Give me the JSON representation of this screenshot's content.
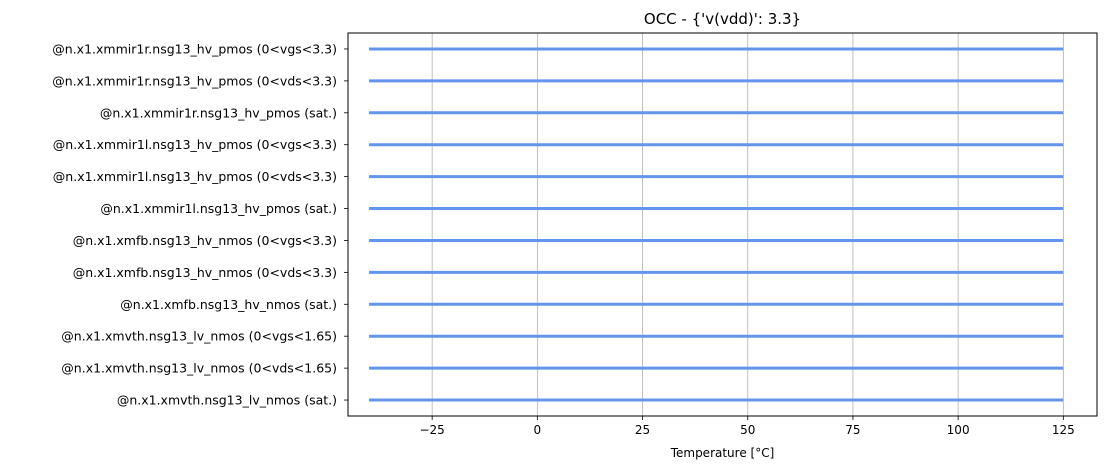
{
  "chart_data": {
    "type": "bar",
    "orientation": "horizontal",
    "title": "OCC - {'v(vdd)': 3.3}",
    "xlabel": "Temperature [°C]",
    "ylabel": "",
    "xlim": [
      -45,
      133
    ],
    "xticks": [
      -25,
      0,
      25,
      50,
      75,
      100,
      125
    ],
    "xtick_labels": [
      "−25",
      "0",
      "25",
      "50",
      "75",
      "100",
      "125"
    ],
    "grid": "x",
    "bar_color": "#6495ed",
    "categories": [
      "@n.x1.xmmir1r.nsg13_hv_pmos (0<vgs<3.3)",
      "@n.x1.xmmir1r.nsg13_hv_pmos (0<vds<3.3)",
      "@n.x1.xmmir1r.nsg13_hv_pmos (sat.)",
      "@n.x1.xmmir1l.nsg13_hv_pmos (0<vgs<3.3)",
      "@n.x1.xmmir1l.nsg13_hv_pmos (0<vds<3.3)",
      "@n.x1.xmmir1l.nsg13_hv_pmos (sat.)",
      "@n.x1.xmfb.nsg13_hv_nmos (0<vgs<3.3)",
      "@n.x1.xmfb.nsg13_hv_nmos (0<vds<3.3)",
      "@n.x1.xmfb.nsg13_hv_nmos (sat.)",
      "@n.x1.xmvth.nsg13_lv_nmos (0<vgs<1.65)",
      "@n.x1.xmvth.nsg13_lv_nmos (0<vds<1.65)",
      "@n.x1.xmvth.nsg13_lv_nmos (sat.)"
    ],
    "ranges": [
      [
        -40,
        125
      ],
      [
        -40,
        125
      ],
      [
        -40,
        125
      ],
      [
        -40,
        125
      ],
      [
        -40,
        125
      ],
      [
        -40,
        125
      ],
      [
        -40,
        125
      ],
      [
        -40,
        125
      ],
      [
        -40,
        125
      ],
      [
        -40,
        125
      ],
      [
        -40,
        125
      ],
      [
        -40,
        125
      ]
    ]
  }
}
